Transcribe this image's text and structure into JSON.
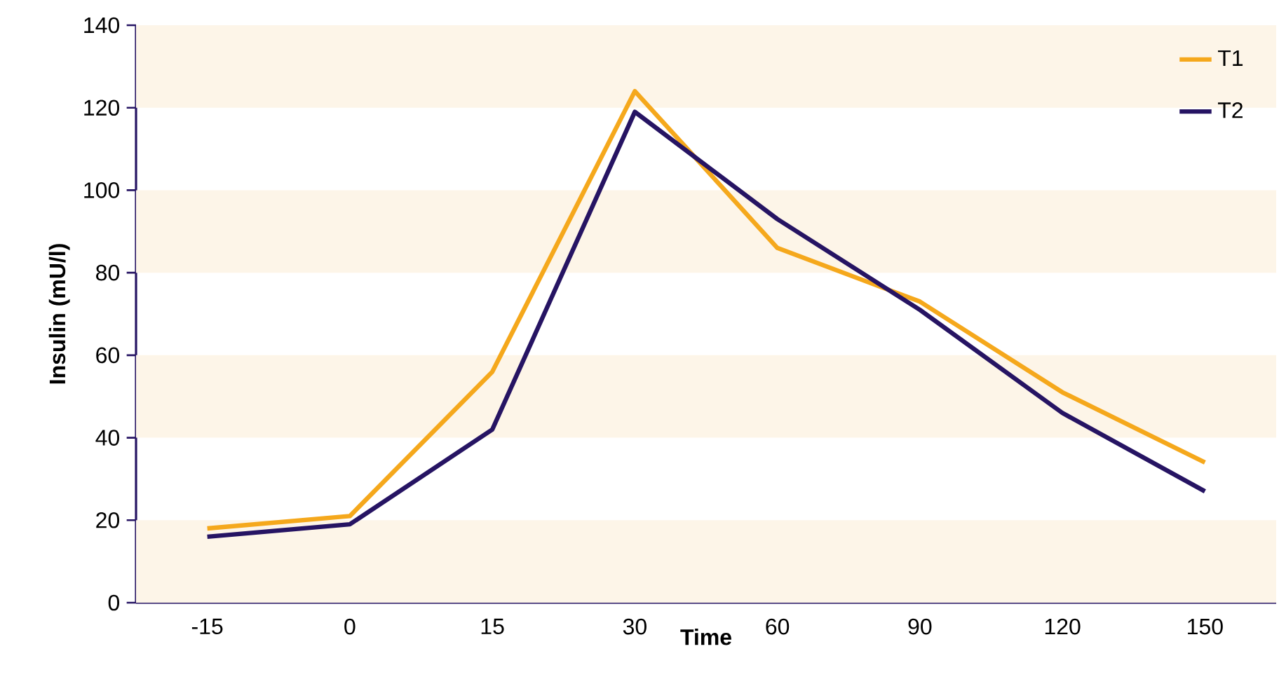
{
  "chart_data": {
    "type": "line",
    "xlabel": "Time",
    "ylabel": "Insulin (mU/l)",
    "categories": [
      "-15",
      "0",
      "15",
      "30",
      "60",
      "90",
      "120",
      "150"
    ],
    "series": [
      {
        "name": "T1",
        "color": "#f5a81c",
        "values": [
          18,
          21,
          56,
          124,
          86,
          73,
          51,
          34
        ]
      },
      {
        "name": "T2",
        "color": "#261463",
        "values": [
          16,
          19,
          42,
          119,
          93,
          71,
          46,
          27
        ]
      }
    ],
    "ylim": [
      0,
      140
    ],
    "yticks": [
      0,
      20,
      40,
      60,
      80,
      100,
      120,
      140
    ],
    "bands": [
      {
        "axis": "y",
        "from": 0,
        "to": 20,
        "color": "#fdf5e8"
      },
      {
        "axis": "y",
        "from": 40,
        "to": 60,
        "color": "#fdf5e8"
      },
      {
        "axis": "y",
        "from": 80,
        "to": 100,
        "color": "#fdf5e8"
      },
      {
        "axis": "y",
        "from": 120,
        "to": 140,
        "color": "#fdf5e8"
      }
    ],
    "legend": "top right",
    "grid": false,
    "marker": "none",
    "line_style": "solid"
  }
}
